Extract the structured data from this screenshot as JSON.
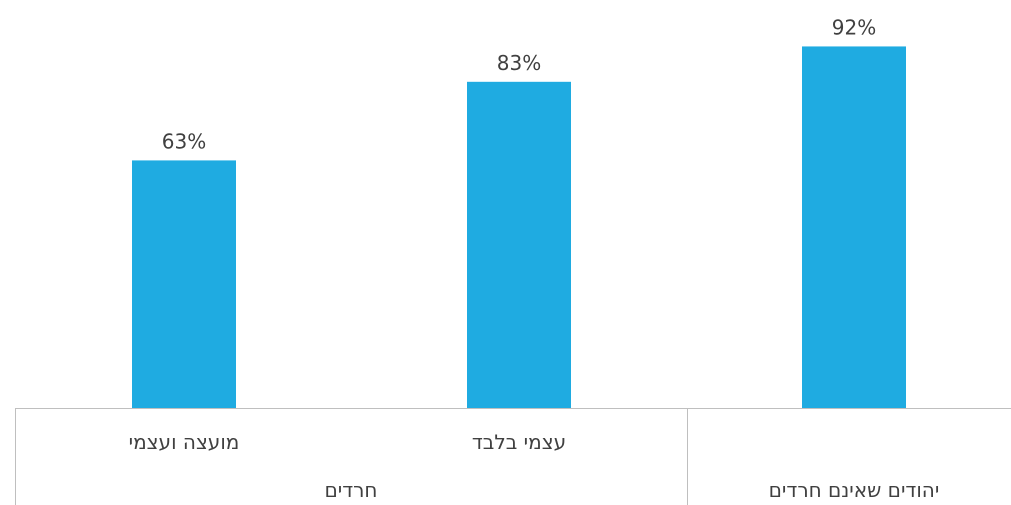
{
  "chart_data": {
    "type": "bar",
    "title": "",
    "xlabel": "",
    "ylabel": "",
    "ylim": [
      0,
      100
    ],
    "grid": false,
    "colors": {
      "bar": "#1FABE1",
      "axis": "#BFBFBF",
      "text": "#404040"
    },
    "categories": [
      {
        "label": "מועצה ועצמי",
        "group": "חרדים"
      },
      {
        "label": "עצמי בלבד",
        "group": "חרדים"
      },
      {
        "label": "",
        "group": "יהודים שאינם חרדים"
      }
    ],
    "groups": [
      "חרדים",
      "יהודים שאינם חרדים"
    ],
    "values": [
      63,
      83,
      92
    ],
    "data_labels": [
      "63%",
      "83%",
      "92%"
    ]
  }
}
